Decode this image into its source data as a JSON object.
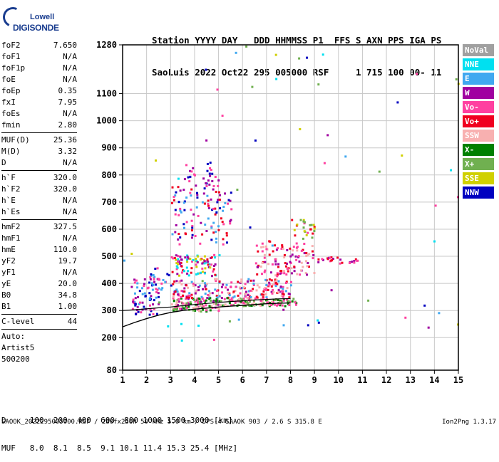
{
  "logo": {
    "line1": "Lowell",
    "line2": "DIGISONDE"
  },
  "header": {
    "line1": "Station YYYY DAY   DDD HHMMSS P1  FFS S AXN PPS IGA PS",
    "line2": "SaoLuis 2022 Oct22 295 005000 RSF     1 715 100 00- 11"
  },
  "params": {
    "group1": [
      {
        "name": "foF2",
        "value": "7.650"
      },
      {
        "name": "foF1",
        "value": "N/A"
      },
      {
        "name": "foF1p",
        "value": "N/A"
      },
      {
        "name": "foE",
        "value": "N/A"
      },
      {
        "name": "foEp",
        "value": "0.35"
      },
      {
        "name": "fxI",
        "value": "7.95"
      },
      {
        "name": "foEs",
        "value": "N/A"
      },
      {
        "name": "fmin",
        "value": "2.80"
      }
    ],
    "group2": [
      {
        "name": "MUF(D)",
        "value": "25.36"
      },
      {
        "name": "M(D)",
        "value": "3.32"
      },
      {
        "name": "D",
        "value": "N/A"
      }
    ],
    "group3": [
      {
        "name": "h`F",
        "value": "320.0"
      },
      {
        "name": "h`F2",
        "value": "320.0"
      },
      {
        "name": "h`E",
        "value": "N/A"
      },
      {
        "name": "h`Es",
        "value": "N/A"
      }
    ],
    "group4": [
      {
        "name": "hmF2",
        "value": "327.5"
      },
      {
        "name": "hmF1",
        "value": "N/A"
      },
      {
        "name": "hmE",
        "value": "110.0"
      },
      {
        "name": "yF2",
        "value": "19.7"
      },
      {
        "name": "yF1",
        "value": "N/A"
      },
      {
        "name": "yE",
        "value": "20.0"
      },
      {
        "name": "B0",
        "value": "34.8"
      },
      {
        "name": "B1",
        "value": "1.00"
      }
    ],
    "group5": [
      {
        "name": "C-level",
        "value": "44"
      }
    ],
    "autoscale": [
      "Auto:",
      "Artist5",
      "500200"
    ]
  },
  "legend": [
    {
      "label": "NoVal",
      "color": "#a0a0a0"
    },
    {
      "label": "NNE",
      "color": "#00e0f0"
    },
    {
      "label": "E",
      "color": "#40a8f0"
    },
    {
      "label": "W",
      "color": "#a000a0"
    },
    {
      "label": "Vo-",
      "color": "#ff40a0"
    },
    {
      "label": "Vo+",
      "color": "#f00020"
    },
    {
      "label": "SSW",
      "color": "#f8b0b0"
    },
    {
      "label": "X-",
      "color": "#008000"
    },
    {
      "label": "X+",
      "color": "#70b050"
    },
    {
      "label": "SSE",
      "color": "#d0d000"
    },
    {
      "label": "NNW",
      "color": "#0000c0"
    }
  ],
  "footer": {
    "d_row": "D     100  200  400  600  800 1000 1500 3000 [km]",
    "muf_row": "MUF   8.0  8.1  8.5  9.1 10.1 11.4 15.3 25.4 [MHz]",
    "source": "SAOOK_2022295005000.RSF / 280fx256h 50 kHz 5.0 km / DPS-4 SAAOK 903 / 2.6 S 315.8 E",
    "version": "Ion2Png 1.3.17"
  },
  "chart_data": {
    "type": "scatter",
    "title": "",
    "xlabel": "",
    "ylabel": "",
    "xlim": [
      1,
      15
    ],
    "ylim": [
      80,
      1280
    ],
    "xticks": [
      1,
      2,
      3,
      4,
      5,
      6,
      7,
      8,
      9,
      10,
      11,
      12,
      13,
      14,
      15
    ],
    "yticks": [
      80,
      200,
      300,
      400,
      500,
      600,
      700,
      800,
      900,
      1000,
      1100,
      1280
    ],
    "grid": true,
    "legend_placement": "right",
    "profile": {
      "name": "",
      "x": [
        1.0,
        1.5,
        2.0,
        2.5,
        3.0,
        3.5,
        4.0,
        4.5,
        5.0,
        5.5,
        6.0,
        6.5,
        7.0,
        7.5,
        8.0
      ],
      "y": [
        240,
        256,
        270,
        283,
        293,
        300,
        305,
        309,
        313,
        316,
        319,
        322,
        325,
        327,
        328
      ]
    },
    "trace": {
      "name": "",
      "x": [
        1.0,
        1.5,
        2.0,
        2.5,
        3.0,
        3.5,
        4.0,
        4.5,
        5.0,
        5.5,
        6.0,
        6.5,
        7.0,
        7.5,
        8.0
      ],
      "y": [
        300,
        303,
        306,
        310,
        313,
        318,
        322,
        326,
        330,
        333,
        336,
        339,
        341,
        343,
        344
      ]
    },
    "echo_clusters": [
      {
        "x": [
          1.3,
          2.5
        ],
        "y": [
          285,
          420
        ],
        "density": 70,
        "colors": [
          "NNW",
          "W",
          "Vo-",
          "E"
        ]
      },
      {
        "x": [
          2.0,
          3.0
        ],
        "y": [
          380,
          460
        ],
        "density": 25,
        "colors": [
          "E",
          "NNW",
          "Vo-"
        ]
      },
      {
        "x": [
          3.0,
          5.0
        ],
        "y": [
          300,
          350
        ],
        "density": 120,
        "colors": [
          "X-",
          "X+",
          "SSW",
          "W",
          "Vo-"
        ]
      },
      {
        "x": [
          3.0,
          8.0
        ],
        "y": [
          350,
          420
        ],
        "density": 200,
        "colors": [
          "W",
          "Vo-",
          "Vo+",
          "SSW",
          "E"
        ]
      },
      {
        "x": [
          3.0,
          5.0
        ],
        "y": [
          430,
          510
        ],
        "density": 90,
        "colors": [
          "SSE",
          "Vo+",
          "W",
          "NNE",
          "Vo-"
        ]
      },
      {
        "x": [
          3.0,
          5.5
        ],
        "y": [
          540,
          760
        ],
        "density": 110,
        "colors": [
          "W",
          "Vo-",
          "Vo+",
          "NNW",
          "E"
        ]
      },
      {
        "x": [
          3.5,
          5.0
        ],
        "y": [
          760,
          850
        ],
        "density": 30,
        "colors": [
          "W",
          "Vo-",
          "NNW"
        ]
      },
      {
        "x": [
          5.0,
          8.2
        ],
        "y": [
          320,
          350
        ],
        "density": 120,
        "colors": [
          "X-",
          "SSW",
          "Vo-",
          "X+"
        ]
      },
      {
        "x": [
          6.5,
          9.0
        ],
        "y": [
          430,
          560
        ],
        "density": 110,
        "colors": [
          "Vo+",
          "Vo-",
          "W",
          "SSW"
        ]
      },
      {
        "x": [
          8.0,
          9.0
        ],
        "y": [
          570,
          640
        ],
        "density": 25,
        "colors": [
          "Vo+",
          "Vo-",
          "SSE",
          "X+"
        ]
      },
      {
        "x": [
          9.0,
          10.8
        ],
        "y": [
          475,
          500
        ],
        "density": 25,
        "colors": [
          "Vo+",
          "W",
          "Vo-"
        ]
      },
      {
        "x": [
          1.0,
          15.0
        ],
        "y": [
          190,
          1280
        ],
        "density": 60,
        "colors": [
          "E",
          "NNW",
          "W",
          "Vo-",
          "NNE",
          "X+",
          "SSE"
        ]
      }
    ]
  }
}
